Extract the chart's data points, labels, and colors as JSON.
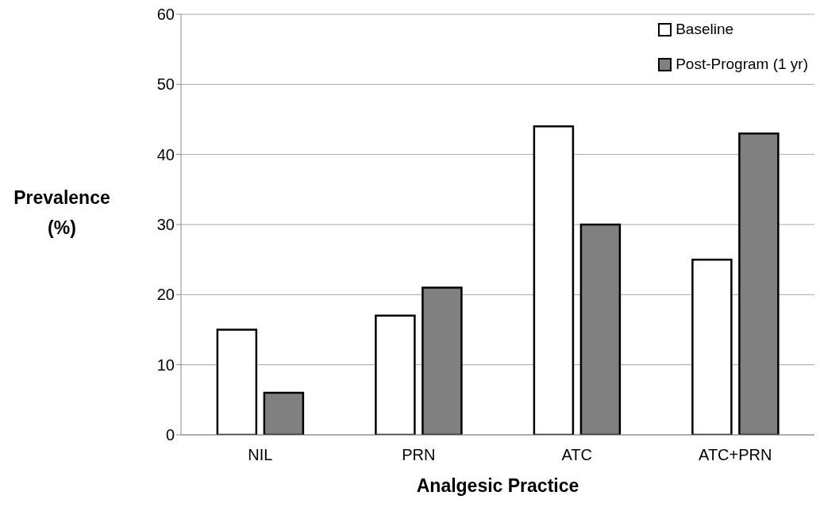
{
  "chart_data": {
    "type": "bar",
    "xlabel": "Analgesic Practice",
    "ylabel": "Prevalence (%)",
    "categories": [
      "NIL",
      "PRN",
      "ATC",
      "ATC+PRN"
    ],
    "series": [
      {
        "name": "Baseline",
        "color": "#ffffff",
        "values": [
          15,
          17,
          44,
          25
        ]
      },
      {
        "name": "Post-Program (1 yr)",
        "color": "#808080",
        "values": [
          6,
          21,
          30,
          43
        ]
      }
    ],
    "ylim": [
      0,
      60
    ],
    "yticks": [
      0,
      10,
      20,
      30,
      40,
      50,
      60
    ],
    "grid": "y",
    "legend": "top right"
  }
}
